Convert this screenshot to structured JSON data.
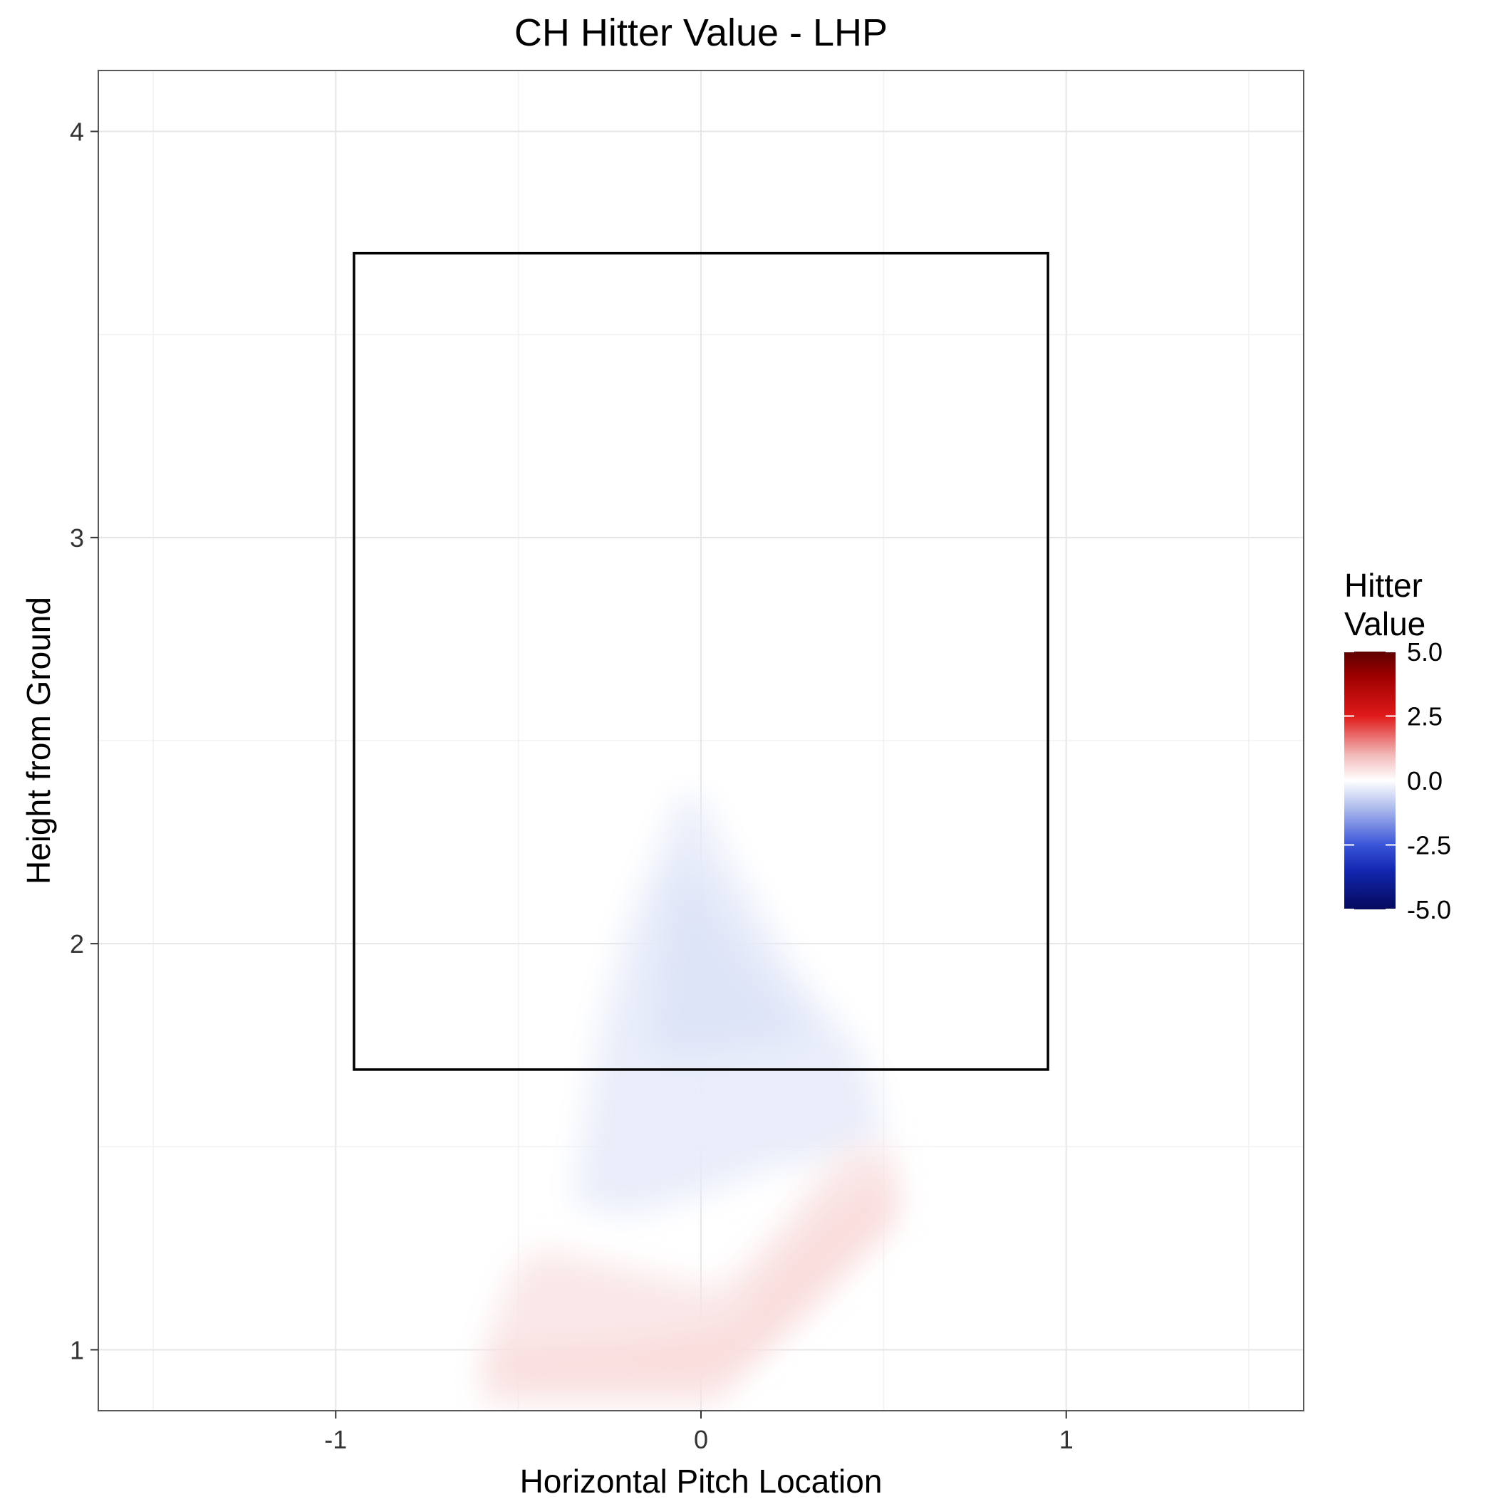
{
  "chart_data": {
    "type": "heatmap",
    "title": "CH Hitter Value - LHP",
    "xlabel": "Horizontal Pitch Location",
    "ylabel": "Height from Ground",
    "xlim": [
      -1.65,
      1.65
    ],
    "ylim": [
      0.85,
      4.15
    ],
    "x_ticks": [
      -1,
      0,
      1
    ],
    "x_tick_labels": [
      "-1",
      "0",
      "1"
    ],
    "y_ticks": [
      1,
      2,
      3,
      4
    ],
    "y_tick_labels": [
      "1",
      "2",
      "3",
      "4"
    ],
    "grid": true,
    "strike_zone": {
      "x": [
        -0.95,
        0.95
      ],
      "y": [
        1.69,
        3.7
      ]
    },
    "legend": {
      "title_lines": [
        "Hitter",
        "Value"
      ],
      "placement": "right",
      "range": [
        -5,
        5
      ],
      "breaks": [
        5.0,
        2.5,
        0.0,
        -2.5,
        -5.0
      ],
      "break_labels": [
        "5.0",
        "2.5",
        "0.0",
        "-2.5",
        "-5.0"
      ],
      "gradient": [
        {
          "value": -5.0,
          "color": "#050a5c"
        },
        {
          "value": -3.5,
          "color": "#1226b0"
        },
        {
          "value": -2.5,
          "color": "#3a55d8"
        },
        {
          "value": -1.0,
          "color": "#b3c0ee"
        },
        {
          "value": 0.0,
          "color": "#ffffff"
        },
        {
          "value": 1.0,
          "color": "#f2b8b8"
        },
        {
          "value": 2.5,
          "color": "#e01a1a"
        },
        {
          "value": 4.0,
          "color": "#a00000"
        },
        {
          "value": 5.0,
          "color": "#5e0000"
        }
      ]
    },
    "regions": [
      {
        "name": "negative value region",
        "value": -0.3,
        "polygon": [
          [
            -0.06,
            2.36
          ],
          [
            0.0,
            2.36
          ],
          [
            0.08,
            2.2
          ],
          [
            0.14,
            2.12
          ],
          [
            0.2,
            2.02
          ],
          [
            0.27,
            1.92
          ],
          [
            0.34,
            1.84
          ],
          [
            0.43,
            1.74
          ],
          [
            0.47,
            1.66
          ],
          [
            0.5,
            1.52
          ],
          [
            0.4,
            1.47
          ],
          [
            0.2,
            1.45
          ],
          [
            0.0,
            1.38
          ],
          [
            -0.2,
            1.33
          ],
          [
            -0.35,
            1.36
          ],
          [
            -0.32,
            1.55
          ],
          [
            -0.27,
            1.82
          ],
          [
            -0.2,
            2.05
          ],
          [
            -0.12,
            2.22
          ]
        ]
      },
      {
        "name": "negative value core",
        "value": -0.45,
        "polygon": [
          [
            -0.05,
            2.21
          ],
          [
            0.0,
            2.15
          ],
          [
            0.1,
            2.0
          ],
          [
            0.2,
            1.88
          ],
          [
            0.3,
            1.77
          ],
          [
            0.1,
            1.74
          ],
          [
            -0.06,
            1.72
          ],
          [
            -0.14,
            1.75
          ],
          [
            -0.12,
            1.95
          ],
          [
            -0.09,
            2.1
          ]
        ]
      },
      {
        "name": "positive value band",
        "value": 0.35,
        "polygon": [
          [
            0.4,
            1.5
          ],
          [
            0.53,
            1.5
          ],
          [
            0.53,
            1.31
          ],
          [
            0.4,
            1.2
          ],
          [
            0.28,
            1.1
          ],
          [
            0.14,
            0.98
          ],
          [
            0.05,
            0.87
          ],
          [
            -0.6,
            0.87
          ],
          [
            -0.6,
            0.97
          ],
          [
            -0.56,
            1.08
          ],
          [
            -0.52,
            1.18
          ],
          [
            -0.45,
            1.25
          ],
          [
            -0.2,
            1.2
          ],
          [
            0.05,
            1.15
          ],
          [
            0.2,
            1.28
          ],
          [
            0.3,
            1.4
          ]
        ]
      },
      {
        "name": "positive value core",
        "value": 0.5,
        "polygon": [
          [
            0.47,
            1.42
          ],
          [
            0.52,
            1.42
          ],
          [
            0.52,
            1.33
          ],
          [
            0.4,
            1.22
          ],
          [
            0.28,
            1.1
          ],
          [
            0.14,
            0.98
          ],
          [
            0.02,
            0.92
          ],
          [
            -0.55,
            0.92
          ],
          [
            -0.56,
            1.0
          ],
          [
            -0.2,
            1.02
          ],
          [
            0.08,
            1.06
          ],
          [
            0.2,
            1.2
          ],
          [
            0.35,
            1.34
          ]
        ]
      }
    ]
  }
}
